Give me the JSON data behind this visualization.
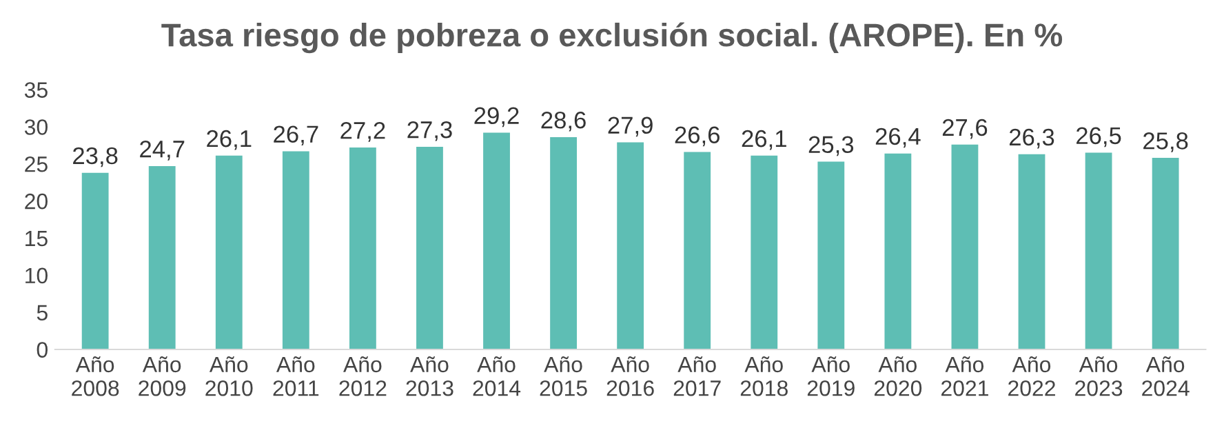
{
  "chart_data": {
    "type": "bar",
    "title": "Tasa riesgo de pobreza o exclusión social. (AROPE). En %",
    "categories": [
      "Año\n2008",
      "Año\n2009",
      "Año\n2010",
      "Año\n2011",
      "Año\n2012",
      "Año\n2013",
      "Año\n2014",
      "Año\n2015",
      "Año\n2016",
      "Año\n2017",
      "Año\n2018",
      "Año\n2019",
      "Año\n2020",
      "Año\n2021",
      "Año\n2022",
      "Año\n2023",
      "Año\n2024"
    ],
    "values": [
      23.8,
      24.7,
      26.1,
      26.7,
      27.2,
      27.3,
      29.2,
      28.6,
      27.9,
      26.6,
      26.1,
      25.3,
      26.4,
      27.6,
      26.3,
      26.5,
      25.8
    ],
    "value_labels": [
      "23,8",
      "24,7",
      "26,1",
      "26,7",
      "27,2",
      "27,3",
      "29,2",
      "28,6",
      "27,9",
      "26,6",
      "26,1",
      "25,3",
      "26,4",
      "27,6",
      "26,3",
      "26,5",
      "25,8"
    ],
    "color": "#5ebeb4",
    "ylim": [
      0,
      35
    ],
    "yticks": [
      0,
      5,
      10,
      15,
      20,
      25,
      30,
      35
    ],
    "grid": false,
    "legend": false
  }
}
